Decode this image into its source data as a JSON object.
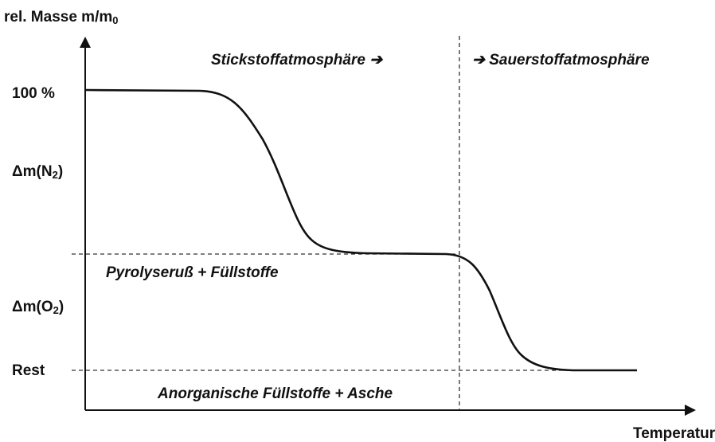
{
  "y_axis_label": {
    "text": "rel. Masse  m/m",
    "subscript": "0"
  },
  "x_axis_label": "Temperatur",
  "levels": {
    "full": "100 %",
    "delta_n2": {
      "text": "Δm(N",
      "subscript": "2",
      "close": ")"
    },
    "delta_o2": {
      "text": "Δm(O",
      "subscript": "2",
      "close": ")"
    },
    "rest": "Rest"
  },
  "regions": {
    "nitrogen": "Stickstoffatmosphäre ➔",
    "oxygen": "➔ Sauerstoffatmosphäre",
    "pyrolysis": "Pyrolyseruß + Füllstoffe",
    "inorganic": "Anorganische Füllstoffe + Asche"
  }
}
